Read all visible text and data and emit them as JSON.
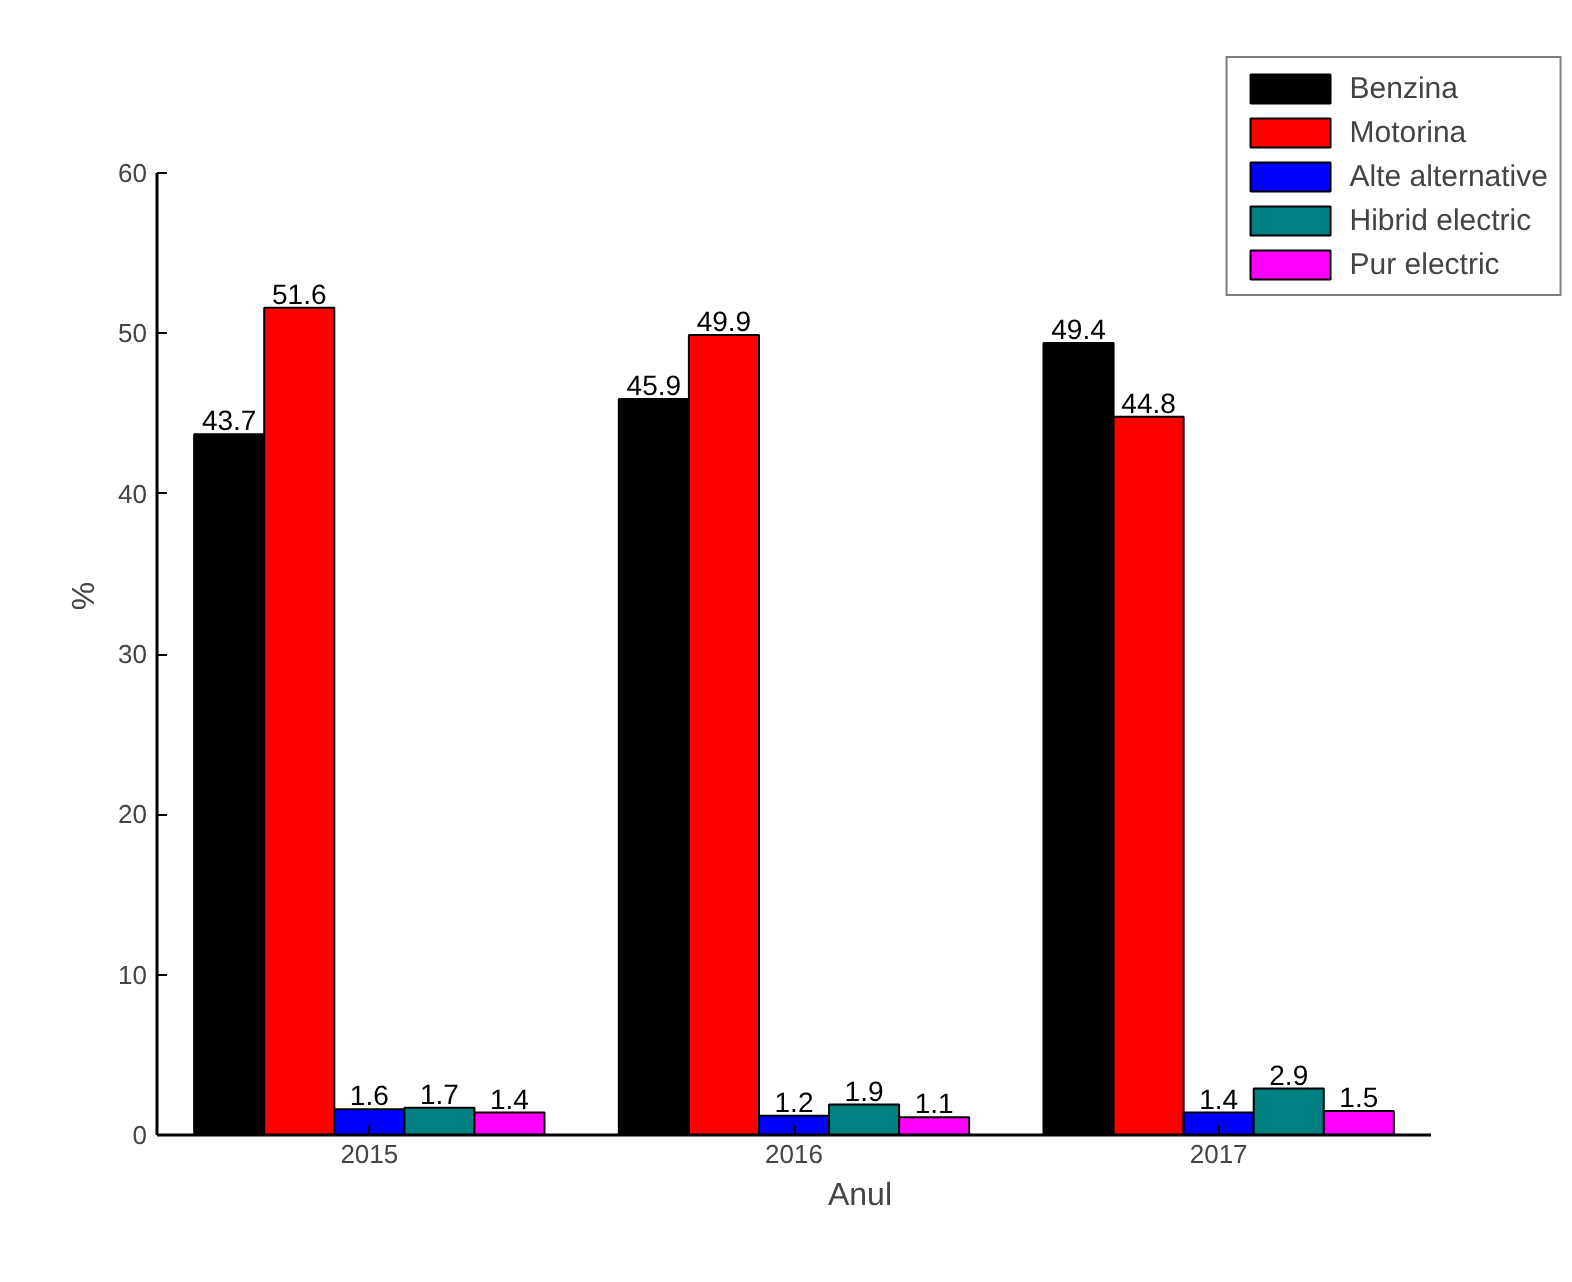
{
  "chart_data": {
    "type": "bar",
    "xlabel": "Anul",
    "ylabel": "%",
    "categories": [
      "2015",
      "2016",
      "2017"
    ],
    "series": [
      {
        "name": "Benzina",
        "color": "#000000",
        "values": [
          43.7,
          45.9,
          49.4
        ]
      },
      {
        "name": "Motorina",
        "color": "#ff0000",
        "values": [
          51.6,
          49.9,
          44.8
        ]
      },
      {
        "name": "Alte alternative",
        "color": "#0000ff",
        "values": [
          1.6,
          1.2,
          1.4
        ]
      },
      {
        "name": "Hibrid electric",
        "color": "#008080",
        "values": [
          1.7,
          1.9,
          2.9
        ]
      },
      {
        "name": "Pur electric",
        "color": "#ff00ff",
        "values": [
          1.4,
          1.1,
          1.5
        ]
      }
    ],
    "ylim": [
      0,
      60
    ],
    "yticks": [
      0,
      10,
      20,
      30,
      40,
      50,
      60
    ],
    "data_labels": true,
    "legend": "top right",
    "grid": false
  }
}
